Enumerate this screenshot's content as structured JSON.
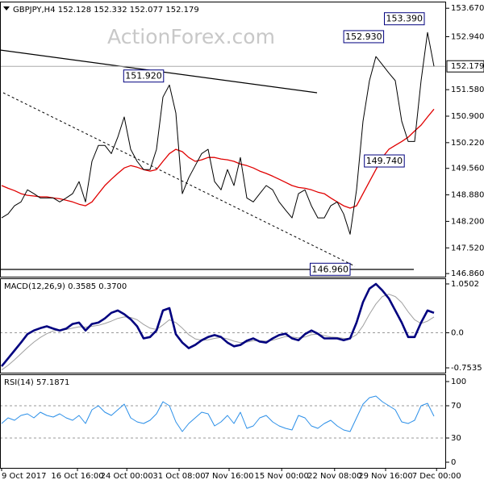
{
  "chart_data": [
    {
      "type": "line",
      "title": "GBPJPY,H4 152.128 152.332 152.077 152.179",
      "watermark": "ActionForex.com",
      "xlim": [
        -0.25,
        68.875
      ],
      "ylim": [
        146.78,
        153.84
      ],
      "yticks": [
        {
          "value": 153.67,
          "label": "153.670"
        },
        {
          "value": 152.94,
          "label": "152.940"
        },
        {
          "value": 151.58,
          "label": "151.580"
        },
        {
          "value": 150.9,
          "label": "150.900"
        },
        {
          "value": 150.22,
          "label": "150.220"
        },
        {
          "value": 149.56,
          "label": "149.560"
        },
        {
          "value": 148.88,
          "label": "148.880"
        },
        {
          "value": 148.2,
          "label": "148.200"
        },
        {
          "value": 147.52,
          "label": "147.520"
        },
        {
          "value": 146.86,
          "label": "146.860"
        }
      ],
      "current_price": {
        "value": 152.179,
        "label": "152.179"
      },
      "series": [
        {
          "color": "#000000",
          "values": [
            148.29,
            148.39,
            148.6,
            148.7,
            149.01,
            148.91,
            148.8,
            148.8,
            148.8,
            148.7,
            148.8,
            148.91,
            149.22,
            148.7,
            149.74,
            150.15,
            150.15,
            149.94,
            150.36,
            150.88,
            150.05,
            149.74,
            149.53,
            149.53,
            150.05,
            151.39,
            151.7,
            150.98,
            148.91,
            149.32,
            149.63,
            149.94,
            150.05,
            149.22,
            149.01,
            149.53,
            149.12,
            149.84,
            148.8,
            148.7,
            148.91,
            149.12,
            149.01,
            148.7,
            148.49,
            148.29,
            148.91,
            149.01,
            148.6,
            148.29,
            148.29,
            148.6,
            148.7,
            148.39,
            147.87,
            149.01,
            150.77,
            151.81,
            152.43,
            152.22,
            152.01,
            151.81,
            150.77,
            150.25,
            150.25,
            151.81,
            153.05,
            152.18
          ]
        },
        {
          "color": "#e00000",
          "values": [
            149.12,
            149.05,
            148.99,
            148.91,
            148.87,
            148.85,
            148.83,
            148.83,
            148.8,
            148.78,
            148.74,
            148.7,
            148.64,
            148.6,
            148.7,
            148.91,
            149.12,
            149.28,
            149.43,
            149.57,
            149.63,
            149.59,
            149.53,
            149.49,
            149.53,
            149.74,
            149.94,
            150.05,
            149.99,
            149.84,
            149.74,
            149.78,
            149.84,
            149.84,
            149.8,
            149.78,
            149.74,
            149.67,
            149.63,
            149.57,
            149.49,
            149.43,
            149.36,
            149.28,
            149.2,
            149.12,
            149.07,
            149.05,
            149.01,
            148.95,
            148.91,
            148.8,
            148.7,
            148.6,
            148.54,
            148.6,
            148.91,
            149.22,
            149.53,
            149.84,
            150.05,
            150.15,
            150.25,
            150.36,
            150.52,
            150.67,
            150.88,
            151.08
          ]
        }
      ],
      "annotations": [
        {
          "x": 25.6,
          "value": 151.92,
          "label": "151.920"
        },
        {
          "x": 59.7,
          "value": 152.93,
          "label": "152.930"
        },
        {
          "x": 66,
          "value": 153.39,
          "label": "153.390"
        },
        {
          "x": 62.9,
          "value": 149.74,
          "label": "149.740"
        },
        {
          "x": 54.5,
          "value": 146.96,
          "label": "146.960"
        }
      ]
    },
    {
      "type": "line",
      "title": "MACD(12,26,9) 0.3585 0.3700",
      "xlim": [
        -0.25,
        68.875
      ],
      "ylim": [
        -0.857,
        1.171
      ],
      "yticks": [
        1.0502,
        {
          "value": 0,
          "label": "0.0"
        },
        -0.7535
      ],
      "level_lines": [
        0
      ],
      "series": [
        {
          "color": "#00007f",
          "values": [
            -0.72,
            -0.55,
            -0.38,
            -0.21,
            -0.03,
            0.05,
            0.1,
            0.14,
            0.09,
            0.05,
            0.09,
            0.19,
            0.22,
            0.05,
            0.19,
            0.22,
            0.31,
            0.43,
            0.48,
            0.4,
            0.29,
            0.14,
            -0.12,
            -0.09,
            0.05,
            0.48,
            0.53,
            -0.03,
            -0.21,
            -0.33,
            -0.26,
            -0.16,
            -0.09,
            -0.05,
            -0.09,
            -0.21,
            -0.29,
            -0.26,
            -0.17,
            -0.12,
            -0.19,
            -0.21,
            -0.12,
            -0.05,
            -0.02,
            -0.12,
            -0.16,
            -0.03,
            0.05,
            -0.02,
            -0.12,
            -0.12,
            -0.12,
            -0.16,
            -0.12,
            0.22,
            0.66,
            0.95,
            1.05,
            0.91,
            0.74,
            0.48,
            0.22,
            -0.09,
            -0.09,
            0.22,
            0.48,
            0.43
          ]
        },
        {
          "color": "#a0a0a0",
          "values": [
            -0.8,
            -0.7,
            -0.58,
            -0.45,
            -0.32,
            -0.2,
            -0.1,
            -0.02,
            0.04,
            0.06,
            0.07,
            0.1,
            0.13,
            0.12,
            0.14,
            0.16,
            0.2,
            0.25,
            0.31,
            0.34,
            0.33,
            0.28,
            0.18,
            0.1,
            0.07,
            0.17,
            0.28,
            0.22,
            0.1,
            -0.04,
            -0.13,
            -0.16,
            -0.15,
            -0.12,
            -0.1,
            -0.13,
            -0.18,
            -0.21,
            -0.2,
            -0.17,
            -0.17,
            -0.18,
            -0.16,
            -0.12,
            -0.08,
            -0.09,
            -0.11,
            -0.09,
            -0.04,
            -0.03,
            -0.06,
            -0.09,
            -0.1,
            -0.12,
            -0.12,
            -0.04,
            0.15,
            0.4,
            0.62,
            0.78,
            0.83,
            0.78,
            0.65,
            0.45,
            0.28,
            0.2,
            0.25,
            0.34
          ]
        }
      ]
    },
    {
      "type": "line",
      "title": "RSI(14) 57.1871",
      "xlim": [
        -0.25,
        68.875
      ],
      "ylim": [
        -7,
        109
      ],
      "yticks": [
        100,
        70,
        30,
        0
      ],
      "level_lines": [
        70,
        30
      ],
      "xticks": [
        {
          "value": 0,
          "label": "9 Oct 2017"
        },
        {
          "value": 11.75,
          "label": "16 Oct 16:00"
        },
        {
          "value": 19.4,
          "label": "24 Oct 00:00"
        },
        {
          "value": 27.5,
          "label": "31 Oct 08:00"
        },
        {
          "value": 35.25,
          "label": "7 Nov 16:00"
        },
        {
          "value": 43.4,
          "label": "15 Nov 00:00"
        },
        {
          "value": 51.6,
          "label": "22 Nov 08:00"
        },
        {
          "value": 59.5,
          "label": "29 Nov 16:00"
        },
        {
          "value": 67.4,
          "label": "7 Dec 00:00"
        }
      ],
      "series": [
        {
          "color": "#2b8fe8",
          "values": [
            48,
            55,
            52,
            58,
            60,
            55,
            62,
            58,
            56,
            60,
            55,
            52,
            58,
            48,
            65,
            70,
            62,
            58,
            65,
            72,
            55,
            50,
            48,
            52,
            60,
            75,
            70,
            50,
            38,
            48,
            55,
            62,
            60,
            45,
            50,
            58,
            48,
            62,
            42,
            45,
            55,
            58,
            50,
            45,
            42,
            40,
            58,
            55,
            45,
            42,
            48,
            52,
            45,
            40,
            38,
            55,
            72,
            80,
            82,
            75,
            70,
            65,
            50,
            48,
            52,
            70,
            73,
            57
          ]
        }
      ]
    }
  ]
}
